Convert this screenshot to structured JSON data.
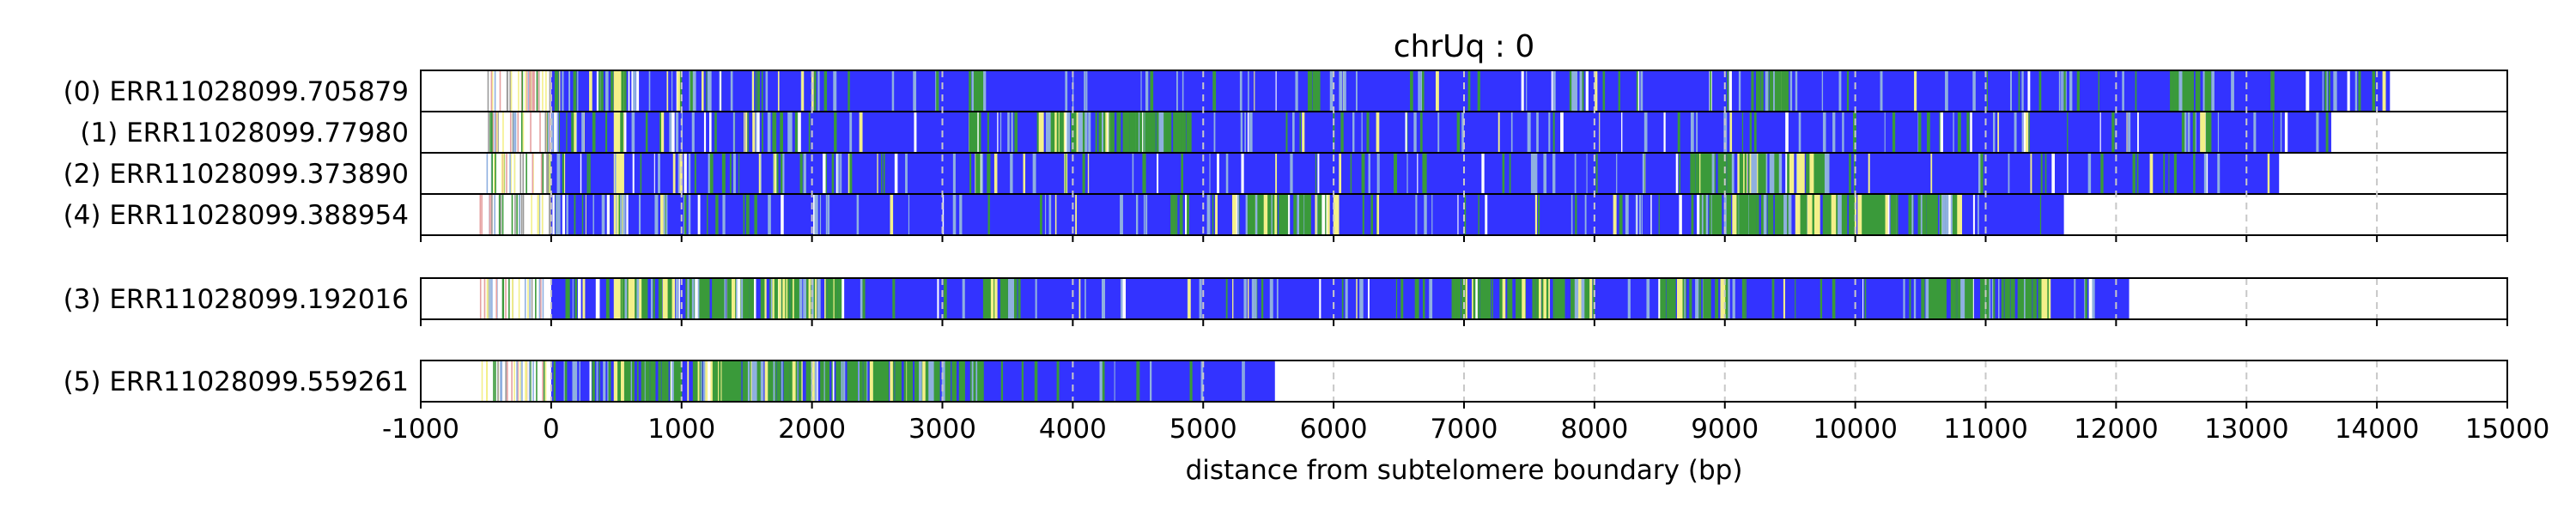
{
  "chart_data": {
    "type": "track",
    "title": "chrUq : 0",
    "xlabel": "distance from subtelomere boundary (bp)",
    "xlim": [
      -1000,
      15000
    ],
    "xticks": [
      -1000,
      0,
      1000,
      2000,
      3000,
      4000,
      5000,
      6000,
      7000,
      8000,
      9000,
      10000,
      11000,
      12000,
      13000,
      14000,
      15000
    ],
    "grid": "vertical dashed",
    "colors": {
      "main": "#3333ff",
      "alt": "#3a9a3a",
      "light": "#8fb0e0",
      "yellow": "#f4f08a",
      "pink": "#e6a0a0",
      "gray": "#9a9a9a",
      "grid": "#c8c8c8"
    },
    "panels": [
      {
        "reads": [
          {
            "label": "(0) ERR11028099.705879",
            "start": -550,
            "end": 14100,
            "alt_regions": [
              [
                3200,
                3300
              ],
              [
                5800,
                5900
              ],
              [
                7800,
                7900
              ],
              [
                9200,
                9500
              ],
              [
                12400,
                12700
              ]
            ]
          },
          {
            "label": "(1) ERR11028099.77980",
            "start": -500,
            "end": 13650,
            "alt_regions": [
              [
                3200,
                3300
              ],
              [
                3700,
                4900
              ],
              [
                12500,
                12700
              ]
            ]
          },
          {
            "label": "(2) ERR11028099.373890",
            "start": -500,
            "end": 13250,
            "alt_regions": [
              [
                3200,
                3300
              ],
              [
                8700,
                9800
              ]
            ]
          },
          {
            "label": "(4) ERR11028099.388954",
            "start": -550,
            "end": 11600,
            "alt_regions": [
              [
                5200,
                6000
              ],
              [
                8800,
                10800
              ]
            ]
          }
        ]
      },
      {
        "reads": [
          {
            "label": "(3) ERR11028099.192016",
            "start": -550,
            "end": 12100,
            "alt_regions": [
              [
                500,
                2200
              ],
              [
                3300,
                3600
              ],
              [
                6900,
                8000
              ],
              [
                8500,
                9000
              ],
              [
                10500,
                11500
              ]
            ]
          }
        ]
      },
      {
        "reads": [
          {
            "label": "(5) ERR11028099.559261",
            "start": -550,
            "end": 5550,
            "alt_regions": [
              [
                500,
                3300
              ]
            ]
          }
        ]
      }
    ]
  }
}
